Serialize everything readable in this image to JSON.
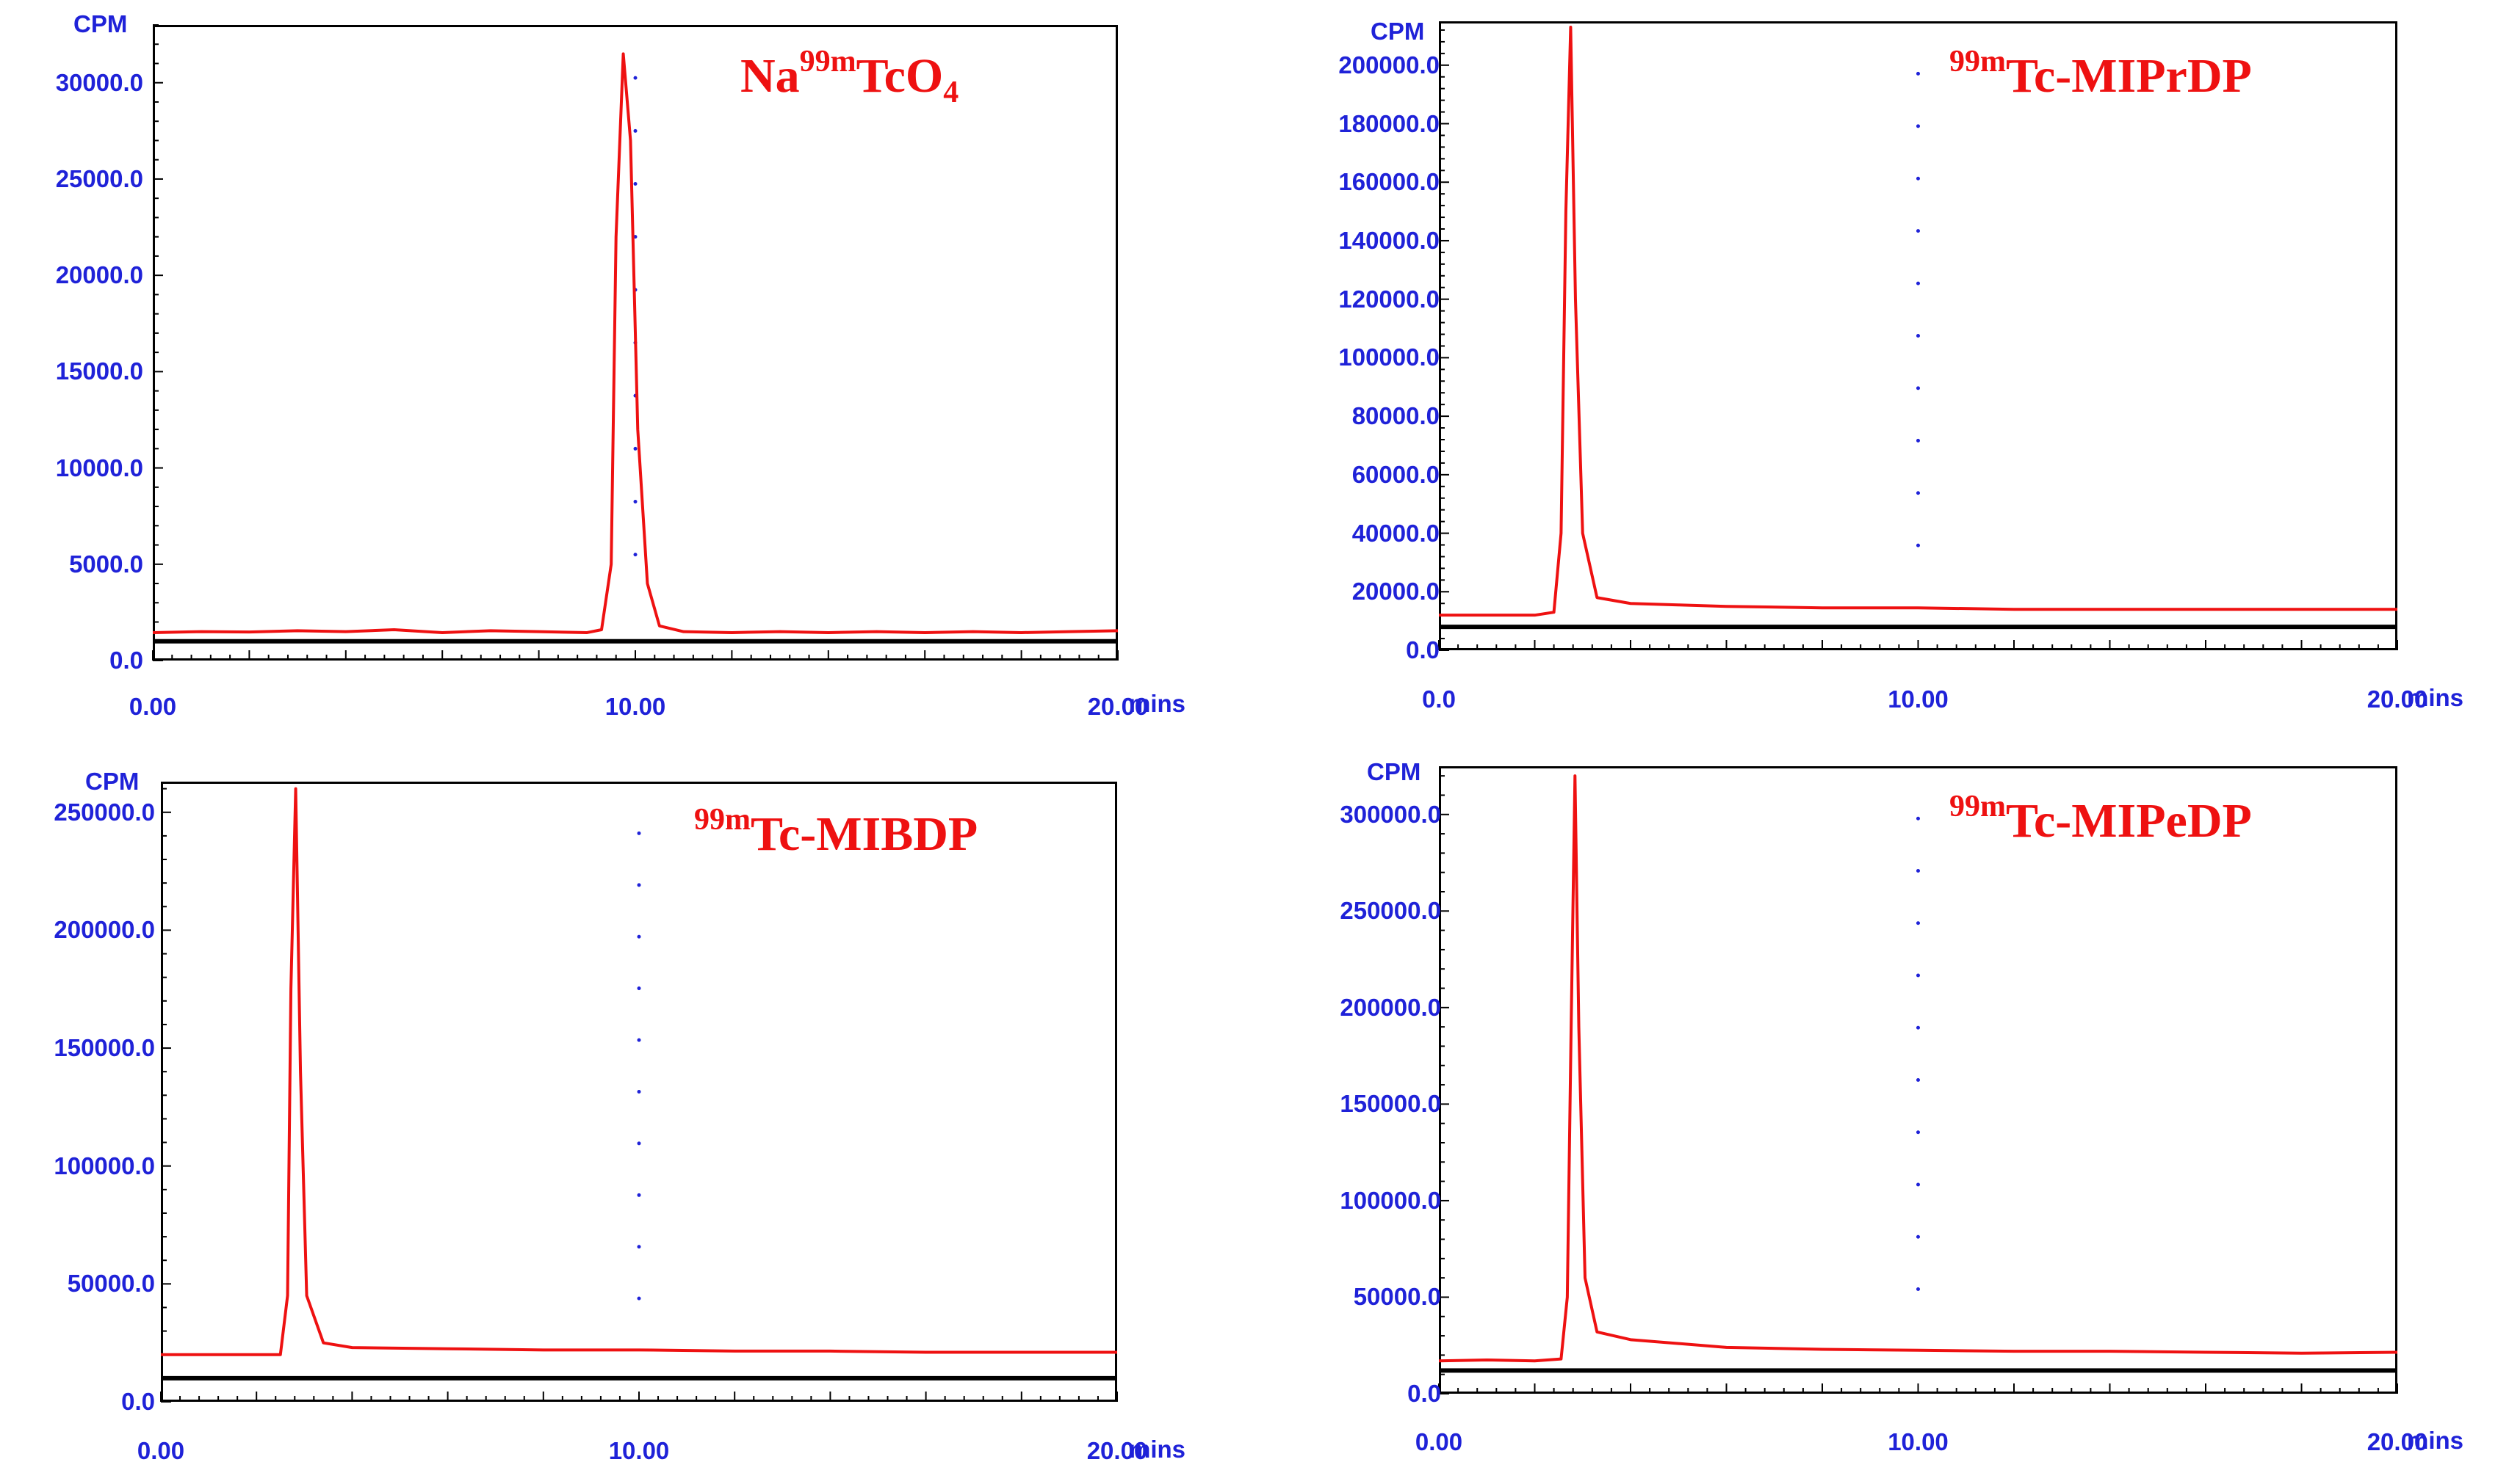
{
  "x_unit": "mins",
  "y_unit": "CPM",
  "panels": [
    {
      "id": "nat",
      "title": {
        "prefix": "Na",
        "sup": "99m",
        "main": "TcO",
        "sub": "4"
      },
      "y_max": 33000,
      "y_ticks": [
        {
          "value": 0,
          "label": "0.0"
        },
        {
          "value": 5000,
          "label": "5000.0"
        },
        {
          "value": 10000,
          "label": "10000.0"
        },
        {
          "value": 15000,
          "label": "15000.0"
        },
        {
          "value": 20000,
          "label": "20000.0"
        },
        {
          "value": 25000,
          "label": "25000.0"
        },
        {
          "value": 30000,
          "label": "30000.0"
        }
      ],
      "x_ticks": [
        {
          "value": 0,
          "label": "0.00"
        },
        {
          "value": 10,
          "label": "10.00"
        },
        {
          "value": 20,
          "label": "20.00"
        }
      ],
      "baseline": 1000
    },
    {
      "id": "miprdp",
      "title": {
        "prefix": "",
        "sup": "99m",
        "main": "Tc-MIPrDP",
        "sub": ""
      },
      "y_max": 215000,
      "y_ticks": [
        {
          "value": 0,
          "label": "0.0"
        },
        {
          "value": 20000,
          "label": "20000.0"
        },
        {
          "value": 40000,
          "label": "40000.0"
        },
        {
          "value": 60000,
          "label": "60000.0"
        },
        {
          "value": 80000,
          "label": "80000.0"
        },
        {
          "value": 100000,
          "label": "100000.0"
        },
        {
          "value": 120000,
          "label": "120000.0"
        },
        {
          "value": 140000,
          "label": "140000.0"
        },
        {
          "value": 160000,
          "label": "160000.0"
        },
        {
          "value": 180000,
          "label": "180000.0"
        },
        {
          "value": 200000,
          "label": "200000.0"
        }
      ],
      "x_ticks": [
        {
          "value": 0,
          "label": "0.0"
        },
        {
          "value": 10,
          "label": "10.00"
        },
        {
          "value": 20,
          "label": "20.00"
        }
      ],
      "baseline": 8000
    },
    {
      "id": "mibdp",
      "title": {
        "prefix": "",
        "sup": "99m",
        "main": "Tc-MIBDP",
        "sub": ""
      },
      "y_max": 263000,
      "y_ticks": [
        {
          "value": 0,
          "label": "0.0"
        },
        {
          "value": 50000,
          "label": "50000.0"
        },
        {
          "value": 100000,
          "label": "100000.0"
        },
        {
          "value": 150000,
          "label": "150000.0"
        },
        {
          "value": 200000,
          "label": "200000.0"
        },
        {
          "value": 250000,
          "label": "250000.0"
        }
      ],
      "x_ticks": [
        {
          "value": 0,
          "label": "0.00"
        },
        {
          "value": 10,
          "label": "10.00"
        },
        {
          "value": 20,
          "label": "20.00"
        }
      ],
      "baseline": 10000
    },
    {
      "id": "mipedp",
      "title": {
        "prefix": "",
        "sup": "99m",
        "main": "Tc-MIPeDP",
        "sub": ""
      },
      "y_max": 325000,
      "y_ticks": [
        {
          "value": 0,
          "label": "0.0"
        },
        {
          "value": 50000,
          "label": "50000.0"
        },
        {
          "value": 100000,
          "label": "100000.0"
        },
        {
          "value": 150000,
          "label": "150000.0"
        },
        {
          "value": 200000,
          "label": "200000.0"
        },
        {
          "value": 250000,
          "label": "250000.0"
        },
        {
          "value": 300000,
          "label": "300000.0"
        }
      ],
      "x_ticks": [
        {
          "value": 0,
          "label": "0.00"
        },
        {
          "value": 10,
          "label": "10.00"
        },
        {
          "value": 20,
          "label": "20.00"
        }
      ],
      "baseline": 12000
    }
  ],
  "chart_data": [
    {
      "type": "line",
      "x": [
        0,
        1,
        2,
        3,
        4,
        5,
        6,
        7,
        8,
        9,
        9.3,
        9.5,
        9.6,
        9.75,
        9.9,
        10.05,
        10.25,
        10.5,
        11,
        12,
        13,
        14,
        15,
        16,
        17,
        18,
        19,
        20
      ],
      "series": [
        {
          "values": [
            1450,
            1500,
            1480,
            1550,
            1500,
            1600,
            1450,
            1550,
            1500,
            1450,
            1600,
            5000,
            22000,
            31500,
            27000,
            12000,
            4000,
            1800,
            1500,
            1450,
            1500,
            1450,
            1500,
            1450,
            1500,
            1450,
            1500,
            1550
          ]
        }
      ],
      "xlim": [
        0,
        20
      ],
      "ylim": [
        0,
        33000
      ]
    },
    {
      "type": "line",
      "x": [
        0,
        1,
        2,
        2.4,
        2.55,
        2.65,
        2.75,
        2.85,
        3.0,
        3.3,
        4,
        5,
        6,
        8,
        10,
        12,
        14,
        16,
        18,
        20
      ],
      "series": [
        {
          "values": [
            12000,
            12000,
            12000,
            13000,
            40000,
            150000,
            213000,
            120000,
            40000,
            18000,
            16000,
            15500,
            15000,
            14500,
            14500,
            14000,
            14000,
            14000,
            14000,
            14000
          ]
        }
      ],
      "xlim": [
        0,
        20
      ],
      "ylim": [
        0,
        215000
      ]
    },
    {
      "type": "line",
      "x": [
        0,
        1,
        2,
        2.5,
        2.65,
        2.72,
        2.82,
        2.92,
        3.05,
        3.4,
        4,
        6,
        8,
        10,
        12,
        14,
        16,
        18,
        20
      ],
      "series": [
        {
          "values": [
            20000,
            20000,
            20000,
            20000,
            45000,
            175000,
            260000,
            140000,
            45000,
            25000,
            23000,
            22500,
            22000,
            22000,
            21500,
            21500,
            21000,
            21000,
            21000
          ]
        }
      ],
      "xlim": [
        0,
        20
      ],
      "ylim": [
        0,
        263000
      ]
    },
    {
      "type": "line",
      "x": [
        0,
        1,
        2,
        2.55,
        2.68,
        2.76,
        2.84,
        2.92,
        3.05,
        3.3,
        4,
        6,
        8,
        10,
        12,
        14,
        16,
        18,
        20
      ],
      "series": [
        {
          "values": [
            17000,
            17500,
            17000,
            18000,
            50000,
            190000,
            320000,
            190000,
            60000,
            32000,
            28000,
            24000,
            23000,
            22500,
            22000,
            22000,
            21500,
            21000,
            21500
          ]
        }
      ],
      "xlim": [
        0,
        20
      ],
      "ylim": [
        0,
        325000
      ]
    }
  ]
}
